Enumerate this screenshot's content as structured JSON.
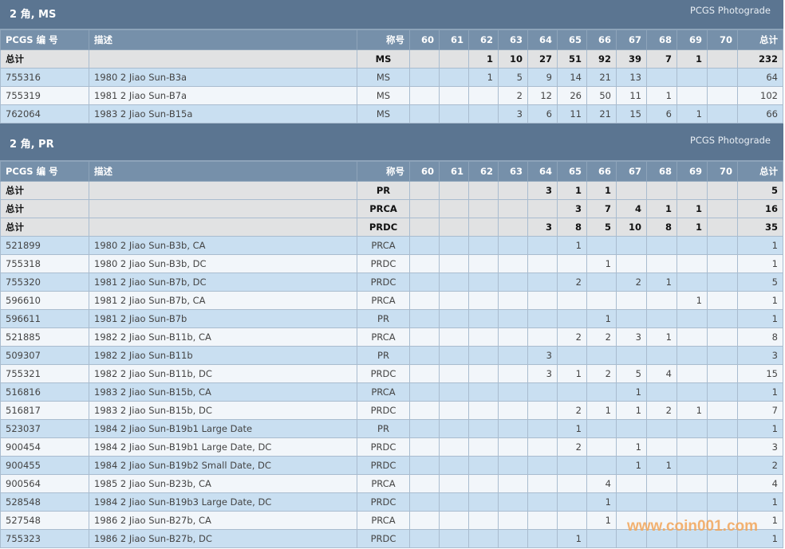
{
  "grade_headers": [
    "60",
    "61",
    "62",
    "63",
    "64",
    "65",
    "66",
    "67",
    "68",
    "69",
    "70"
  ],
  "columns": {
    "id": "PCGS 编 号",
    "desc": "描述",
    "designation": "称号",
    "total": "总计"
  },
  "sections": [
    {
      "title": "2 角, MS",
      "source": "PCGS Photograde",
      "totals": [
        {
          "label": "总计",
          "designation": "MS",
          "grades": [
            "",
            "",
            "1",
            "10",
            "27",
            "51",
            "92",
            "39",
            "7",
            "1",
            ""
          ],
          "total": "232"
        }
      ],
      "rows": [
        {
          "id": "755316",
          "desc": "1980 2 Jiao Sun-B3a",
          "designation": "MS",
          "grades": [
            "",
            "",
            "1",
            "5",
            "9",
            "14",
            "21",
            "13",
            "",
            "",
            ""
          ],
          "total": "64"
        },
        {
          "id": "755319",
          "desc": "1981 2 Jiao Sun-B7a",
          "designation": "MS",
          "grades": [
            "",
            "",
            "",
            "2",
            "12",
            "26",
            "50",
            "11",
            "1",
            "",
            ""
          ],
          "total": "102"
        },
        {
          "id": "762064",
          "desc": "1983 2 Jiao Sun-B15a",
          "designation": "MS",
          "grades": [
            "",
            "",
            "",
            "3",
            "6",
            "11",
            "21",
            "15",
            "6",
            "1",
            ""
          ],
          "total": "66"
        }
      ]
    },
    {
      "title": "2 角, PR",
      "source": "PCGS Photograde",
      "totals": [
        {
          "label": "总计",
          "designation": "PR",
          "grades": [
            "",
            "",
            "",
            "",
            "3",
            "1",
            "1",
            "",
            "",
            "",
            ""
          ],
          "total": "5"
        },
        {
          "label": "总计",
          "designation": "PRCA",
          "grades": [
            "",
            "",
            "",
            "",
            "",
            "3",
            "7",
            "4",
            "1",
            "1",
            ""
          ],
          "total": "16"
        },
        {
          "label": "总计",
          "designation": "PRDC",
          "grades": [
            "",
            "",
            "",
            "",
            "3",
            "8",
            "5",
            "10",
            "8",
            "1",
            ""
          ],
          "total": "35"
        }
      ],
      "rows": [
        {
          "id": "521899",
          "desc": "1980 2 Jiao Sun-B3b, CA",
          "designation": "PRCA",
          "grades": [
            "",
            "",
            "",
            "",
            "",
            "1",
            "",
            "",
            "",
            "",
            ""
          ],
          "total": "1"
        },
        {
          "id": "755318",
          "desc": "1980 2 Jiao Sun-B3b, DC",
          "designation": "PRDC",
          "grades": [
            "",
            "",
            "",
            "",
            "",
            "",
            "1",
            "",
            "",
            "",
            ""
          ],
          "total": "1"
        },
        {
          "id": "755320",
          "desc": "1981 2 Jiao Sun-B7b, DC",
          "designation": "PRDC",
          "grades": [
            "",
            "",
            "",
            "",
            "",
            "2",
            "",
            "2",
            "1",
            "",
            ""
          ],
          "total": "5"
        },
        {
          "id": "596610",
          "desc": "1981 2 Jiao Sun-B7b, CA",
          "designation": "PRCA",
          "grades": [
            "",
            "",
            "",
            "",
            "",
            "",
            "",
            "",
            "",
            "1",
            ""
          ],
          "total": "1"
        },
        {
          "id": "596611",
          "desc": "1981 2 Jiao Sun-B7b",
          "designation": "PR",
          "grades": [
            "",
            "",
            "",
            "",
            "",
            "",
            "1",
            "",
            "",
            "",
            ""
          ],
          "total": "1"
        },
        {
          "id": "521885",
          "desc": "1982 2 Jiao Sun-B11b, CA",
          "designation": "PRCA",
          "grades": [
            "",
            "",
            "",
            "",
            "",
            "2",
            "2",
            "3",
            "1",
            "",
            ""
          ],
          "total": "8"
        },
        {
          "id": "509307",
          "desc": "1982 2 Jiao Sun-B11b",
          "designation": "PR",
          "grades": [
            "",
            "",
            "",
            "",
            "3",
            "",
            "",
            "",
            "",
            "",
            ""
          ],
          "total": "3"
        },
        {
          "id": "755321",
          "desc": "1982 2 Jiao Sun-B11b, DC",
          "designation": "PRDC",
          "grades": [
            "",
            "",
            "",
            "",
            "3",
            "1",
            "2",
            "5",
            "4",
            "",
            ""
          ],
          "total": "15"
        },
        {
          "id": "516816",
          "desc": "1983 2 Jiao Sun-B15b, CA",
          "designation": "PRCA",
          "grades": [
            "",
            "",
            "",
            "",
            "",
            "",
            "",
            "1",
            "",
            "",
            ""
          ],
          "total": "1"
        },
        {
          "id": "516817",
          "desc": "1983 2 Jiao Sun-B15b, DC",
          "designation": "PRDC",
          "grades": [
            "",
            "",
            "",
            "",
            "",
            "2",
            "1",
            "1",
            "2",
            "1",
            ""
          ],
          "total": "7"
        },
        {
          "id": "523037",
          "desc": "1984 2 Jiao Sun-B19b1 Large Date",
          "designation": "PR",
          "grades": [
            "",
            "",
            "",
            "",
            "",
            "1",
            "",
            "",
            "",
            "",
            ""
          ],
          "total": "1"
        },
        {
          "id": "900454",
          "desc": "1984 2 Jiao Sun-B19b1 Large Date, DC",
          "designation": "PRDC",
          "grades": [
            "",
            "",
            "",
            "",
            "",
            "2",
            "",
            "1",
            "",
            "",
            ""
          ],
          "total": "3"
        },
        {
          "id": "900455",
          "desc": "1984 2 Jiao Sun-B19b2 Small Date, DC",
          "designation": "PRDC",
          "grades": [
            "",
            "",
            "",
            "",
            "",
            "",
            "",
            "1",
            "1",
            "",
            ""
          ],
          "total": "2"
        },
        {
          "id": "900564",
          "desc": "1985 2 Jiao Sun-B23b, CA",
          "designation": "PRCA",
          "grades": [
            "",
            "",
            "",
            "",
            "",
            "",
            "4",
            "",
            "",
            "",
            ""
          ],
          "total": "4"
        },
        {
          "id": "528548",
          "desc": "1984 2 Jiao Sun-B19b3 Large Date, DC",
          "designation": "PRDC",
          "grades": [
            "",
            "",
            "",
            "",
            "",
            "",
            "1",
            "",
            "",
            "",
            ""
          ],
          "total": "1"
        },
        {
          "id": "527548",
          "desc": "1986 2 Jiao Sun-B27b, CA",
          "designation": "PRCA",
          "grades": [
            "",
            "",
            "",
            "",
            "",
            "",
            "1",
            "",
            "",
            "",
            ""
          ],
          "total": "1"
        },
        {
          "id": "755323",
          "desc": "1986 2 Jiao Sun-B27b, DC",
          "designation": "PRDC",
          "grades": [
            "",
            "",
            "",
            "",
            "",
            "1",
            "",
            "",
            "",
            "",
            ""
          ],
          "total": "1"
        }
      ]
    }
  ],
  "watermark": "www.coin001.com",
  "colors": {
    "title_bar": "#5b7591",
    "header_row": "#7690aa",
    "total_row": "#e1e2e3",
    "row_odd": "#c9dff1",
    "row_even": "#f2f6fa",
    "id_link": "#a0593a"
  }
}
